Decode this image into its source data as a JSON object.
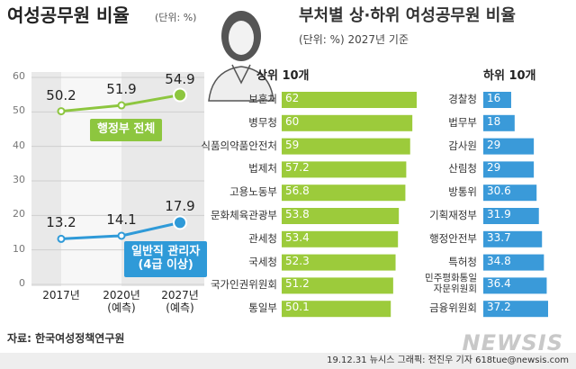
{
  "chart_data": [
    {
      "type": "line",
      "title": "여성공무원 비율",
      "unit": "(단위: %)",
      "categories": [
        "2017년",
        "2020년\n(예측)",
        "2027년\n(예측)"
      ],
      "series": [
        {
          "name": "행정부 전체",
          "color": "#8dc63f",
          "values": [
            50.2,
            51.9,
            54.9
          ]
        },
        {
          "name": "일반직 관리자\n(4급 이상)",
          "color": "#2f9ad8",
          "values": [
            13.2,
            14.1,
            17.9
          ]
        }
      ],
      "ylim": [
        0,
        60
      ],
      "yticks": [
        0,
        10,
        20,
        30,
        40,
        50,
        60
      ],
      "grid": true
    },
    {
      "type": "bar",
      "orientation": "horizontal",
      "title": "부처별 상·하위 여성공무원 비율",
      "subtitle": "(단위: %) 2027년 기준",
      "series": [
        {
          "name": "상위 10개",
          "color": "#9ccb3b",
          "categories": [
            "보훈처",
            "병무청",
            "식품의약품안전처",
            "법제처",
            "고용노동부",
            "문화체육관광부",
            "관세청",
            "국세청",
            "국가인권위원회",
            "통일부"
          ],
          "values": [
            62,
            60,
            59,
            57.2,
            56.8,
            53.8,
            53.4,
            52.3,
            51.2,
            50.1
          ]
        },
        {
          "name": "하위 10개",
          "color": "#3a9ad9",
          "categories": [
            "경찰청",
            "법무부",
            "감사원",
            "산림청",
            "방통위",
            "기획재정부",
            "행정안전부",
            "특허청",
            "민주평화통일\n자문위원회",
            "금융위원회"
          ],
          "values": [
            16,
            18,
            29,
            29,
            30.6,
            31.9,
            33.7,
            34.8,
            36.4,
            37.2
          ]
        }
      ]
    }
  ],
  "source": "자료: 한국여성정책연구원",
  "credit": "19.12.31 뉴시스 그래픽: 전진우 기자 618tue@newsis.com",
  "logo": "NEWSIS"
}
